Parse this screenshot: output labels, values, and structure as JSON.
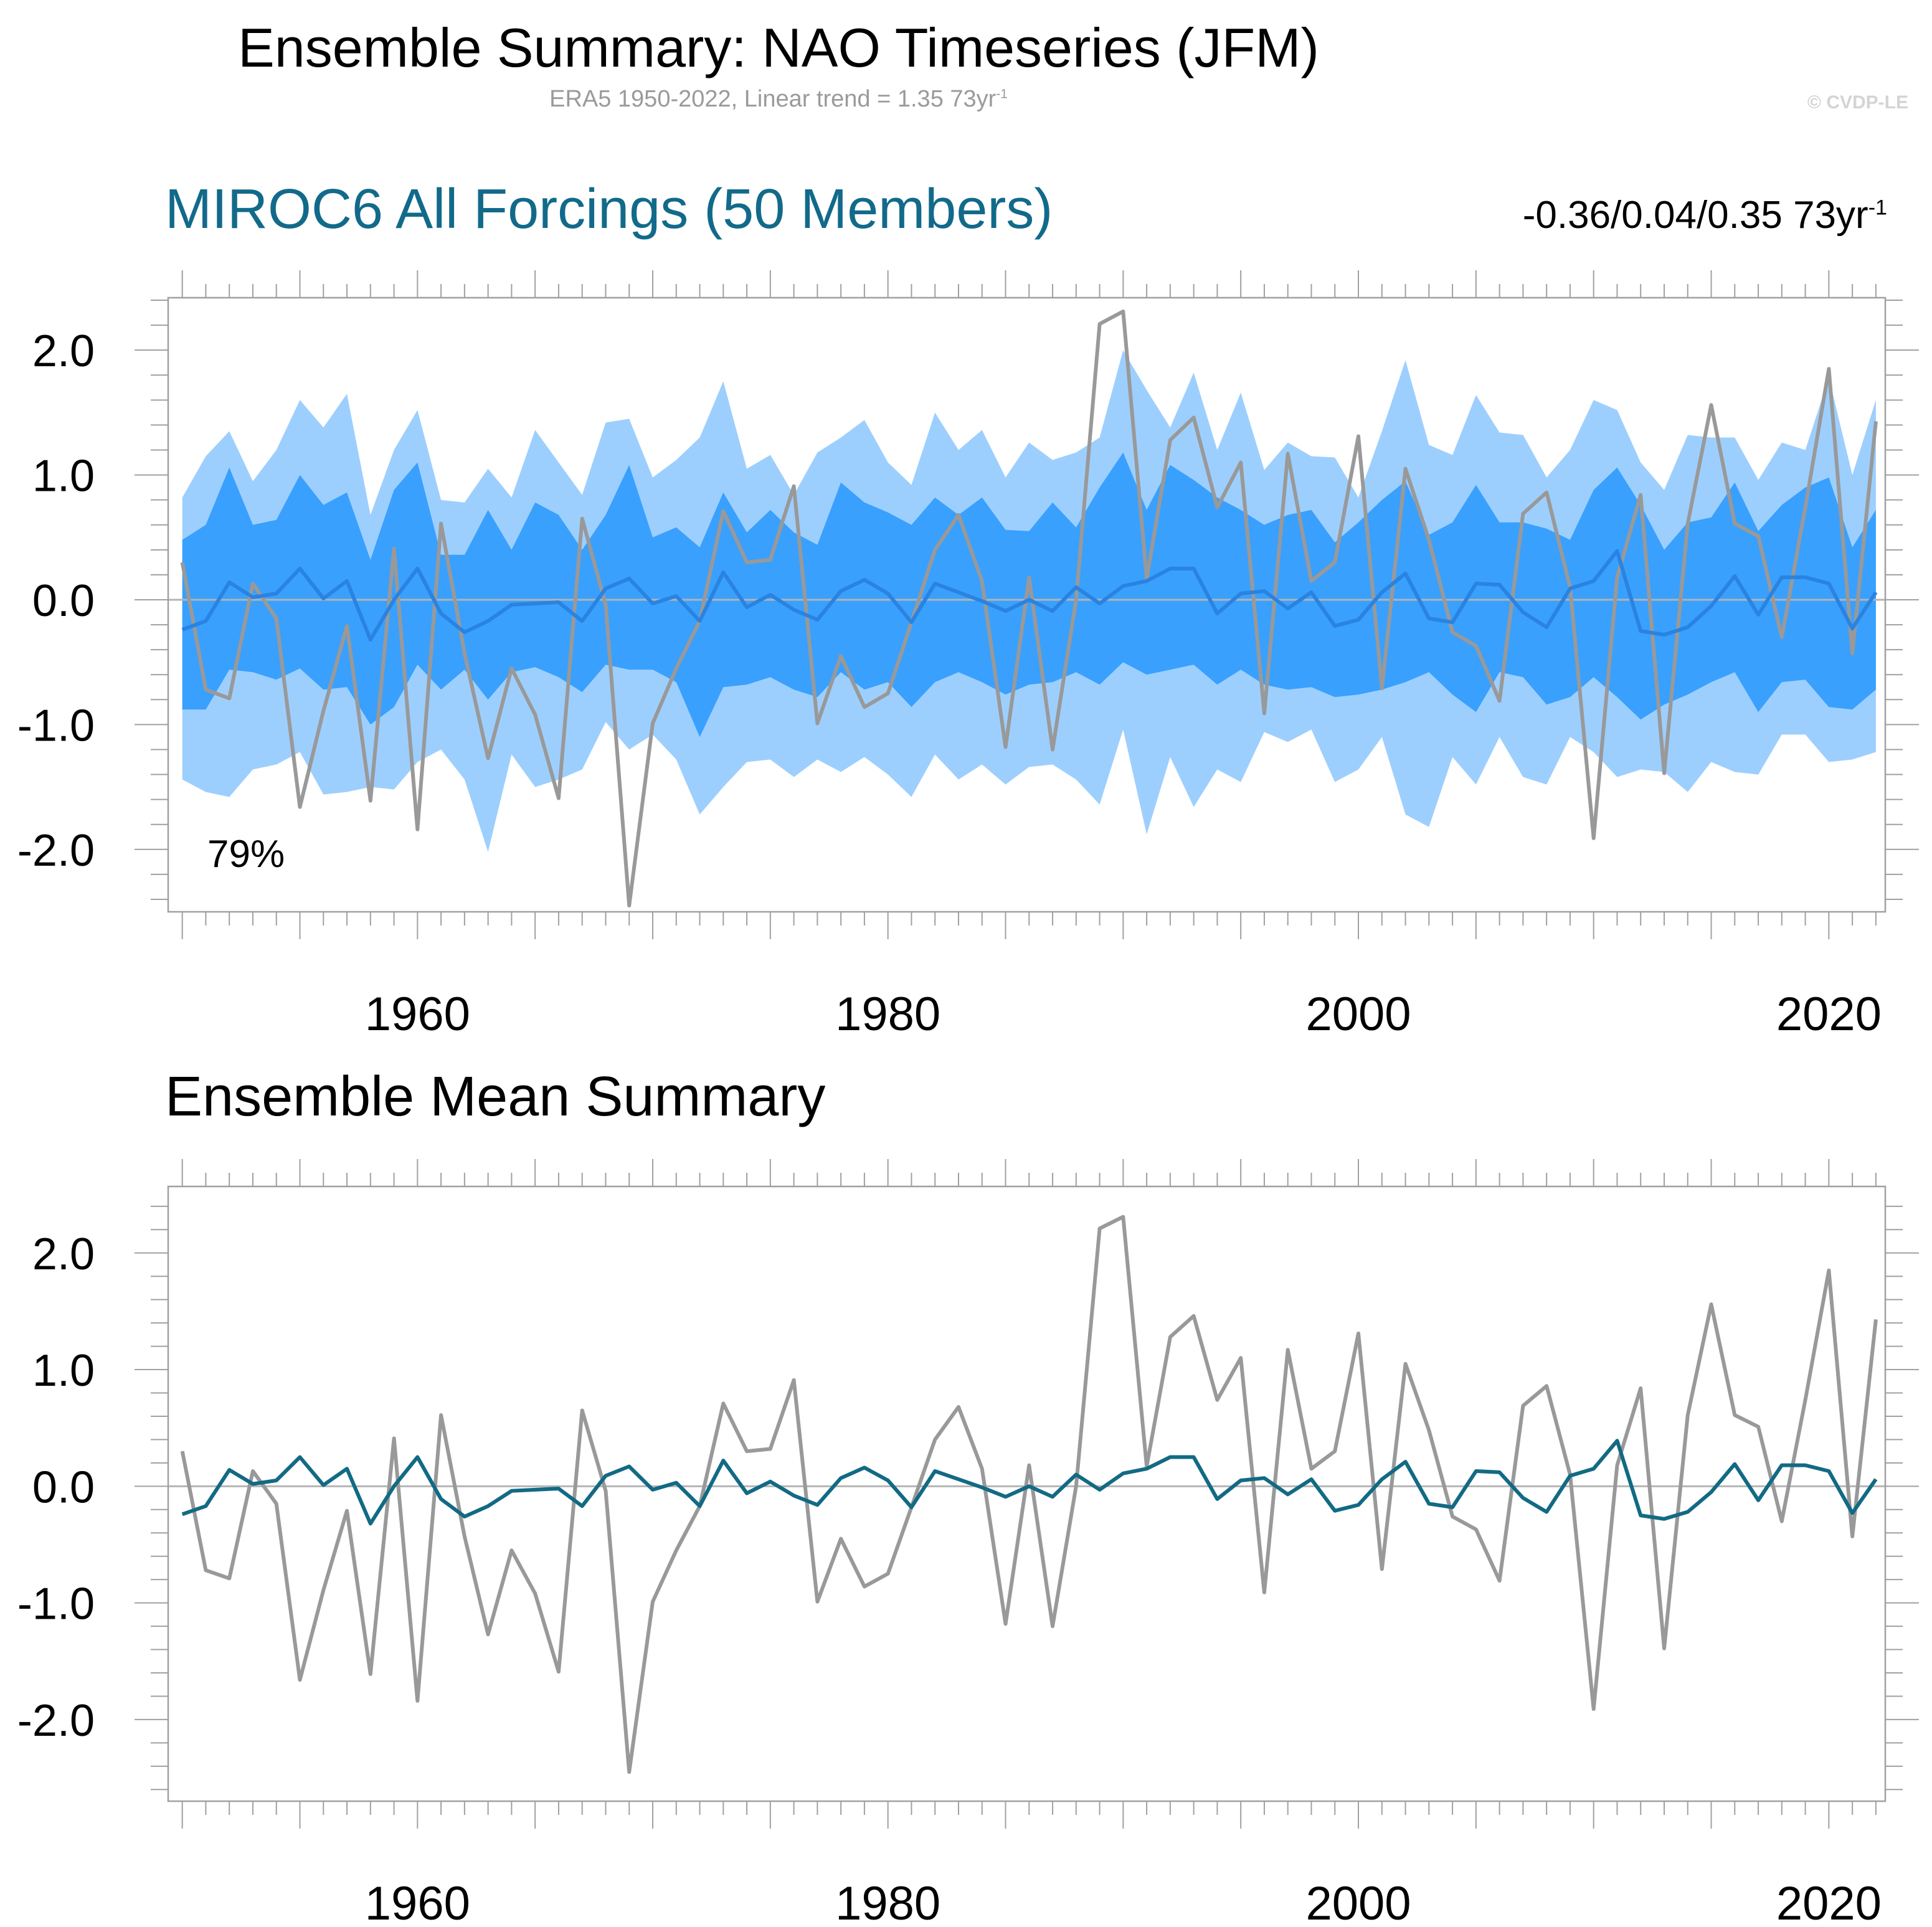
{
  "header": {
    "title": "Ensemble Summary: NAO Timeseries (JFM)",
    "subtitle_text": "ERA5 1950-2022, Linear trend = 1.35 73yr",
    "subtitle_sup": "-1",
    "watermark": "© CVDP-LE"
  },
  "colors": {
    "outer_band": "#9dcffe",
    "inner_band": "#39a0fe",
    "ens_mean_panel1": "#2a83e0",
    "ens_mean_panel2": "#126a84",
    "observed": "#999999",
    "panel1_title": "#126a8a",
    "zero_line": "#b4b4b4",
    "axis": "#a0a0a0"
  },
  "panel1": {
    "title": "MIROC6 All Forcings (50 Members)",
    "trend_text": "-0.36/0.04/0.35 73yr",
    "trend_sup": "-1",
    "percent_label": "79%"
  },
  "panel2": {
    "title": "Ensemble Mean Summary"
  },
  "chart_data": [
    {
      "type": "area",
      "x": [
        1950,
        1951,
        1952,
        1953,
        1954,
        1955,
        1956,
        1957,
        1958,
        1959,
        1960,
        1961,
        1962,
        1963,
        1964,
        1965,
        1966,
        1967,
        1968,
        1969,
        1970,
        1971,
        1972,
        1973,
        1974,
        1975,
        1976,
        1977,
        1978,
        1979,
        1980,
        1981,
        1982,
        1983,
        1984,
        1985,
        1986,
        1987,
        1988,
        1989,
        1990,
        1991,
        1992,
        1993,
        1994,
        1995,
        1996,
        1997,
        1998,
        1999,
        2000,
        2001,
        2002,
        2003,
        2004,
        2005,
        2006,
        2007,
        2008,
        2009,
        2010,
        2011,
        2012,
        2013,
        2014,
        2015,
        2016,
        2017,
        2018,
        2019,
        2020,
        2021,
        2022
      ],
      "xticks": [
        1960,
        1980,
        2000,
        2020
      ],
      "yticks": [
        -2.0,
        -1.0,
        0.0,
        1.0,
        2.0
      ],
      "yticklabels": [
        "-2.0",
        "-1.0",
        "0.0",
        "1.0",
        "2.0"
      ],
      "xlim": [
        1949.4,
        2022.4
      ],
      "ylim": [
        -2.5,
        2.42
      ],
      "series": [
        {
          "role": "outer_band_upper",
          "values": [
            0.82,
            1.15,
            1.35,
            0.95,
            1.2,
            1.6,
            1.38,
            1.65,
            0.68,
            1.2,
            1.52,
            0.8,
            0.78,
            1.05,
            0.82,
            1.36,
            1.1,
            0.84,
            1.42,
            1.45,
            0.98,
            1.12,
            1.3,
            1.75,
            1.05,
            1.16,
            0.84,
            1.18,
            1.3,
            1.44,
            1.1,
            0.92,
            1.5,
            1.2,
            1.36,
            0.98,
            1.26,
            1.12,
            1.18,
            1.3,
            2.0,
            1.68,
            1.38,
            1.82,
            1.2,
            1.66,
            1.04,
            1.26,
            1.15,
            1.14,
            0.82,
            1.35,
            1.92,
            1.24,
            1.16,
            1.64,
            1.34,
            1.32,
            0.98,
            1.2,
            1.6,
            1.52,
            1.1,
            0.88,
            1.32,
            1.3,
            1.3,
            0.96,
            1.26,
            1.2,
            1.78,
            1.0,
            1.6
          ]
        },
        {
          "role": "inner_band_upper",
          "values": [
            0.48,
            0.6,
            1.06,
            0.6,
            0.64,
            1.0,
            0.76,
            0.86,
            0.32,
            0.88,
            1.1,
            0.36,
            0.36,
            0.72,
            0.4,
            0.78,
            0.68,
            0.4,
            0.68,
            1.08,
            0.5,
            0.58,
            0.42,
            0.86,
            0.54,
            0.72,
            0.54,
            0.44,
            0.94,
            0.78,
            0.7,
            0.6,
            0.82,
            0.68,
            0.82,
            0.56,
            0.55,
            0.78,
            0.58,
            0.9,
            1.18,
            0.72,
            1.08,
            0.96,
            0.82,
            0.72,
            0.6,
            0.68,
            0.72,
            0.46,
            0.62,
            0.8,
            0.95,
            0.52,
            0.62,
            0.92,
            0.62,
            0.62,
            0.57,
            0.48,
            0.88,
            1.06,
            0.76,
            0.4,
            0.62,
            0.66,
            0.94,
            0.55,
            0.76,
            0.9,
            0.98,
            0.42,
            0.72
          ]
        },
        {
          "role": "inner_band_lower",
          "values": [
            -0.88,
            -0.88,
            -0.56,
            -0.58,
            -0.64,
            -0.55,
            -0.72,
            -0.7,
            -1.0,
            -0.86,
            -0.52,
            -0.72,
            -0.56,
            -0.8,
            -0.58,
            -0.54,
            -0.62,
            -0.74,
            -0.52,
            -0.56,
            -0.56,
            -0.66,
            -1.1,
            -0.7,
            -0.68,
            -0.62,
            -0.72,
            -0.78,
            -0.58,
            -0.72,
            -0.66,
            -0.86,
            -0.66,
            -0.58,
            -0.66,
            -0.76,
            -0.68,
            -0.66,
            -0.58,
            -0.68,
            -0.5,
            -0.6,
            -0.56,
            -0.52,
            -0.68,
            -0.56,
            -0.68,
            -0.72,
            -0.7,
            -0.78,
            -0.76,
            -0.72,
            -0.66,
            -0.58,
            -0.76,
            -0.9,
            -0.58,
            -0.62,
            -0.84,
            -0.78,
            -0.62,
            -0.78,
            -0.96,
            -0.84,
            -0.76,
            -0.66,
            -0.58,
            -0.9,
            -0.66,
            -0.64,
            -0.86,
            -0.88,
            -0.72
          ]
        },
        {
          "role": "outer_band_lower",
          "values": [
            -1.44,
            -1.54,
            -1.58,
            -1.36,
            -1.32,
            -1.22,
            -1.56,
            -1.54,
            -1.5,
            -1.52,
            -1.3,
            -1.2,
            -1.44,
            -2.02,
            -1.24,
            -1.5,
            -1.44,
            -1.36,
            -0.98,
            -1.2,
            -1.08,
            -1.28,
            -1.72,
            -1.5,
            -1.3,
            -1.28,
            -1.42,
            -1.28,
            -1.38,
            -1.26,
            -1.4,
            -1.58,
            -1.24,
            -1.44,
            -1.32,
            -1.48,
            -1.34,
            -1.32,
            -1.44,
            -1.64,
            -1.04,
            -1.88,
            -1.26,
            -1.66,
            -1.36,
            -1.46,
            -1.06,
            -1.14,
            -1.04,
            -1.46,
            -1.36,
            -1.1,
            -1.72,
            -1.82,
            -1.26,
            -1.48,
            -1.1,
            -1.42,
            -1.48,
            -1.1,
            -1.22,
            -1.42,
            -1.36,
            -1.38,
            -1.54,
            -1.3,
            -1.38,
            -1.4,
            -1.08,
            -1.08,
            -1.3,
            -1.28,
            -1.22
          ]
        },
        {
          "role": "ensemble_mean",
          "values": [
            -0.24,
            -0.17,
            0.14,
            0.02,
            0.05,
            0.25,
            0.01,
            0.15,
            -0.32,
            0.0,
            0.25,
            -0.11,
            -0.26,
            -0.17,
            -0.04,
            -0.03,
            -0.02,
            -0.17,
            0.09,
            0.17,
            -0.03,
            0.03,
            -0.17,
            0.22,
            -0.06,
            0.04,
            -0.08,
            -0.16,
            0.07,
            0.16,
            0.05,
            -0.18,
            0.13,
            0.06,
            -0.01,
            -0.09,
            0.0,
            -0.09,
            0.1,
            -0.03,
            0.11,
            0.15,
            0.25,
            0.25,
            -0.11,
            0.05,
            0.07,
            -0.07,
            0.06,
            -0.21,
            -0.16,
            0.06,
            0.21,
            -0.15,
            -0.18,
            0.13,
            0.12,
            -0.1,
            -0.22,
            0.09,
            0.15,
            0.39,
            -0.25,
            -0.28,
            -0.22,
            -0.05,
            0.19,
            -0.12,
            0.18,
            0.18,
            0.13,
            -0.23,
            0.06
          ]
        },
        {
          "role": "observed",
          "values": [
            0.3,
            -0.72,
            -0.79,
            0.13,
            -0.15,
            -1.66,
            -0.89,
            -0.21,
            -1.61,
            0.41,
            -1.84,
            0.61,
            -0.43,
            -1.27,
            -0.55,
            -0.92,
            -1.59,
            0.65,
            -0.04,
            -2.45,
            -0.99,
            -0.55,
            -0.17,
            0.71,
            0.3,
            0.32,
            0.91,
            -0.99,
            -0.45,
            -0.86,
            -0.75,
            -0.18,
            0.4,
            0.68,
            0.15,
            -1.18,
            0.18,
            -1.2,
            0.0,
            2.21,
            2.31,
            0.17,
            1.28,
            1.46,
            0.74,
            1.1,
            -0.91,
            1.17,
            0.15,
            0.3,
            1.31,
            -0.71,
            1.05,
            0.48,
            -0.26,
            -0.37,
            -0.81,
            0.69,
            0.86,
            0.1,
            -1.91,
            0.18,
            0.84,
            -1.39,
            0.61,
            1.56,
            0.61,
            0.51,
            -0.3,
            0.74,
            1.85,
            -0.43,
            1.43
          ]
        }
      ]
    },
    {
      "type": "line",
      "x": [
        1950,
        1951,
        1952,
        1953,
        1954,
        1955,
        1956,
        1957,
        1958,
        1959,
        1960,
        1961,
        1962,
        1963,
        1964,
        1965,
        1966,
        1967,
        1968,
        1969,
        1970,
        1971,
        1972,
        1973,
        1974,
        1975,
        1976,
        1977,
        1978,
        1979,
        1980,
        1981,
        1982,
        1983,
        1984,
        1985,
        1986,
        1987,
        1988,
        1989,
        1990,
        1991,
        1992,
        1993,
        1994,
        1995,
        1996,
        1997,
        1998,
        1999,
        2000,
        2001,
        2002,
        2003,
        2004,
        2005,
        2006,
        2007,
        2008,
        2009,
        2010,
        2011,
        2012,
        2013,
        2014,
        2015,
        2016,
        2017,
        2018,
        2019,
        2020,
        2021,
        2022
      ],
      "xticks": [
        1960,
        1980,
        2000,
        2020
      ],
      "yticks": [
        -2.0,
        -1.0,
        0.0,
        1.0,
        2.0
      ],
      "yticklabels": [
        "-2.0",
        "-1.0",
        "0.0",
        "1.0",
        "2.0"
      ],
      "xlim": [
        1949.4,
        2022.4
      ],
      "ylim": [
        -2.7,
        2.57
      ],
      "series": [
        {
          "role": "ensemble_mean",
          "values": [
            -0.24,
            -0.17,
            0.14,
            0.02,
            0.05,
            0.25,
            0.01,
            0.15,
            -0.32,
            0.0,
            0.25,
            -0.11,
            -0.26,
            -0.17,
            -0.04,
            -0.03,
            -0.02,
            -0.17,
            0.09,
            0.17,
            -0.03,
            0.03,
            -0.17,
            0.22,
            -0.06,
            0.04,
            -0.08,
            -0.16,
            0.07,
            0.16,
            0.05,
            -0.18,
            0.13,
            0.06,
            -0.01,
            -0.09,
            0.0,
            -0.09,
            0.1,
            -0.03,
            0.11,
            0.15,
            0.25,
            0.25,
            -0.11,
            0.05,
            0.07,
            -0.07,
            0.06,
            -0.21,
            -0.16,
            0.06,
            0.21,
            -0.15,
            -0.18,
            0.13,
            0.12,
            -0.1,
            -0.22,
            0.09,
            0.15,
            0.39,
            -0.25,
            -0.28,
            -0.22,
            -0.05,
            0.19,
            -0.12,
            0.18,
            0.18,
            0.13,
            -0.23,
            0.06
          ]
        },
        {
          "role": "observed",
          "values": [
            0.3,
            -0.72,
            -0.79,
            0.13,
            -0.15,
            -1.66,
            -0.89,
            -0.21,
            -1.61,
            0.41,
            -1.84,
            0.61,
            -0.43,
            -1.27,
            -0.55,
            -0.92,
            -1.59,
            0.65,
            -0.04,
            -2.45,
            -0.99,
            -0.55,
            -0.17,
            0.71,
            0.3,
            0.32,
            0.91,
            -0.99,
            -0.45,
            -0.86,
            -0.75,
            -0.18,
            0.4,
            0.68,
            0.15,
            -1.18,
            0.18,
            -1.2,
            0.0,
            2.21,
            2.31,
            0.17,
            1.28,
            1.46,
            0.74,
            1.1,
            -0.91,
            1.17,
            0.15,
            0.3,
            1.31,
            -0.71,
            1.05,
            0.48,
            -0.26,
            -0.37,
            -0.81,
            0.69,
            0.86,
            0.1,
            -1.91,
            0.18,
            0.84,
            -1.39,
            0.61,
            1.56,
            0.61,
            0.51,
            -0.3,
            0.74,
            1.85,
            -0.43,
            1.43
          ]
        }
      ]
    }
  ]
}
